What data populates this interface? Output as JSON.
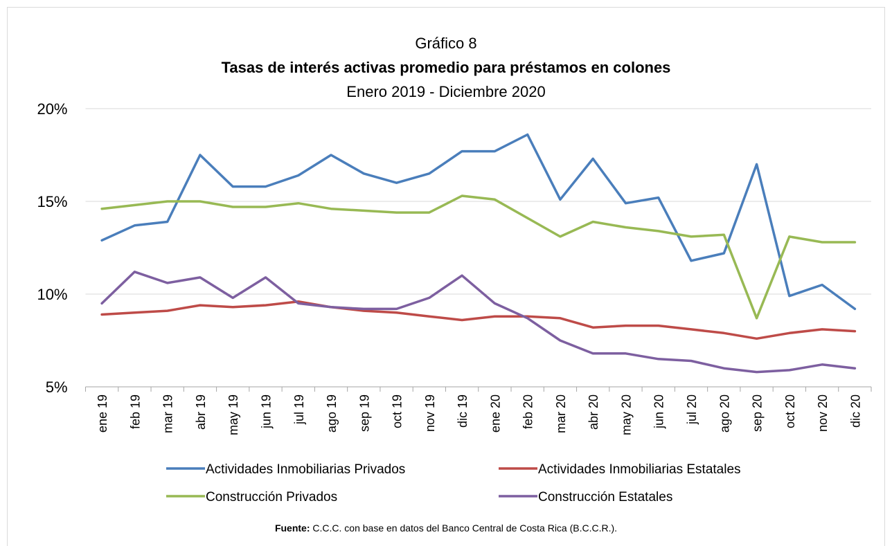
{
  "chart_data": {
    "type": "line",
    "title": "Gráfico 8",
    "subtitle": "Tasas de interés activas promedio para préstamos en colones",
    "period": "Enero 2019 - Diciembre 2020",
    "categories": [
      "ene 19",
      "feb 19",
      "mar 19",
      "abr 19",
      "may 19",
      "jun 19",
      "jul 19",
      "ago 19",
      "sep 19",
      "oct 19",
      "nov 19",
      "dic 19",
      "ene 20",
      "feb 20",
      "mar 20",
      "abr 20",
      "may 20",
      "jun 20",
      "jul 20",
      "ago 20",
      "sep 20",
      "oct 20",
      "nov 20",
      "dic 20"
    ],
    "series": [
      {
        "name": "Actividades Inmobiliarias Privados",
        "color": "#4a7ebb",
        "values": [
          12.9,
          13.7,
          13.9,
          17.5,
          15.8,
          15.8,
          16.4,
          17.5,
          16.5,
          16.0,
          16.5,
          17.7,
          17.7,
          18.6,
          15.1,
          17.3,
          14.9,
          15.2,
          11.8,
          12.2,
          17.0,
          9.9,
          10.5,
          9.2
        ]
      },
      {
        "name": "Actividades Inmobiliarias Estatales",
        "color": "#be4b48",
        "values": [
          8.9,
          9.0,
          9.1,
          9.4,
          9.3,
          9.4,
          9.6,
          9.3,
          9.1,
          9.0,
          8.8,
          8.6,
          8.8,
          8.8,
          8.7,
          8.2,
          8.3,
          8.3,
          8.1,
          7.9,
          7.6,
          7.9,
          8.1,
          8.0
        ]
      },
      {
        "name": "Construcción Privados",
        "color": "#98b954",
        "values": [
          14.6,
          14.8,
          15.0,
          15.0,
          14.7,
          14.7,
          14.9,
          14.6,
          14.5,
          14.4,
          14.4,
          15.3,
          15.1,
          14.1,
          13.1,
          13.9,
          13.6,
          13.4,
          13.1,
          13.2,
          8.7,
          13.1,
          12.8,
          12.8
        ]
      },
      {
        "name": "Construcción Estatales",
        "color": "#7d5fa0",
        "values": [
          9.5,
          11.2,
          10.6,
          10.9,
          9.8,
          10.9,
          9.5,
          9.3,
          9.2,
          9.2,
          9.8,
          11.0,
          9.5,
          8.7,
          7.5,
          6.8,
          6.8,
          6.5,
          6.4,
          6.0,
          5.8,
          5.9,
          6.2,
          6.0
        ]
      }
    ],
    "ylim": [
      5,
      20
    ],
    "yticks": [
      {
        "value": 5,
        "label": "5%"
      },
      {
        "value": 10,
        "label": "10%"
      },
      {
        "value": 15,
        "label": "15%"
      },
      {
        "value": 20,
        "label": "20%"
      }
    ],
    "grid": true,
    "legend": "bottom",
    "source": {
      "label": "Fuente:",
      "text": " C.C.C. con base en datos del Banco Central de Costa Rica (B.C.C.R.)."
    }
  }
}
